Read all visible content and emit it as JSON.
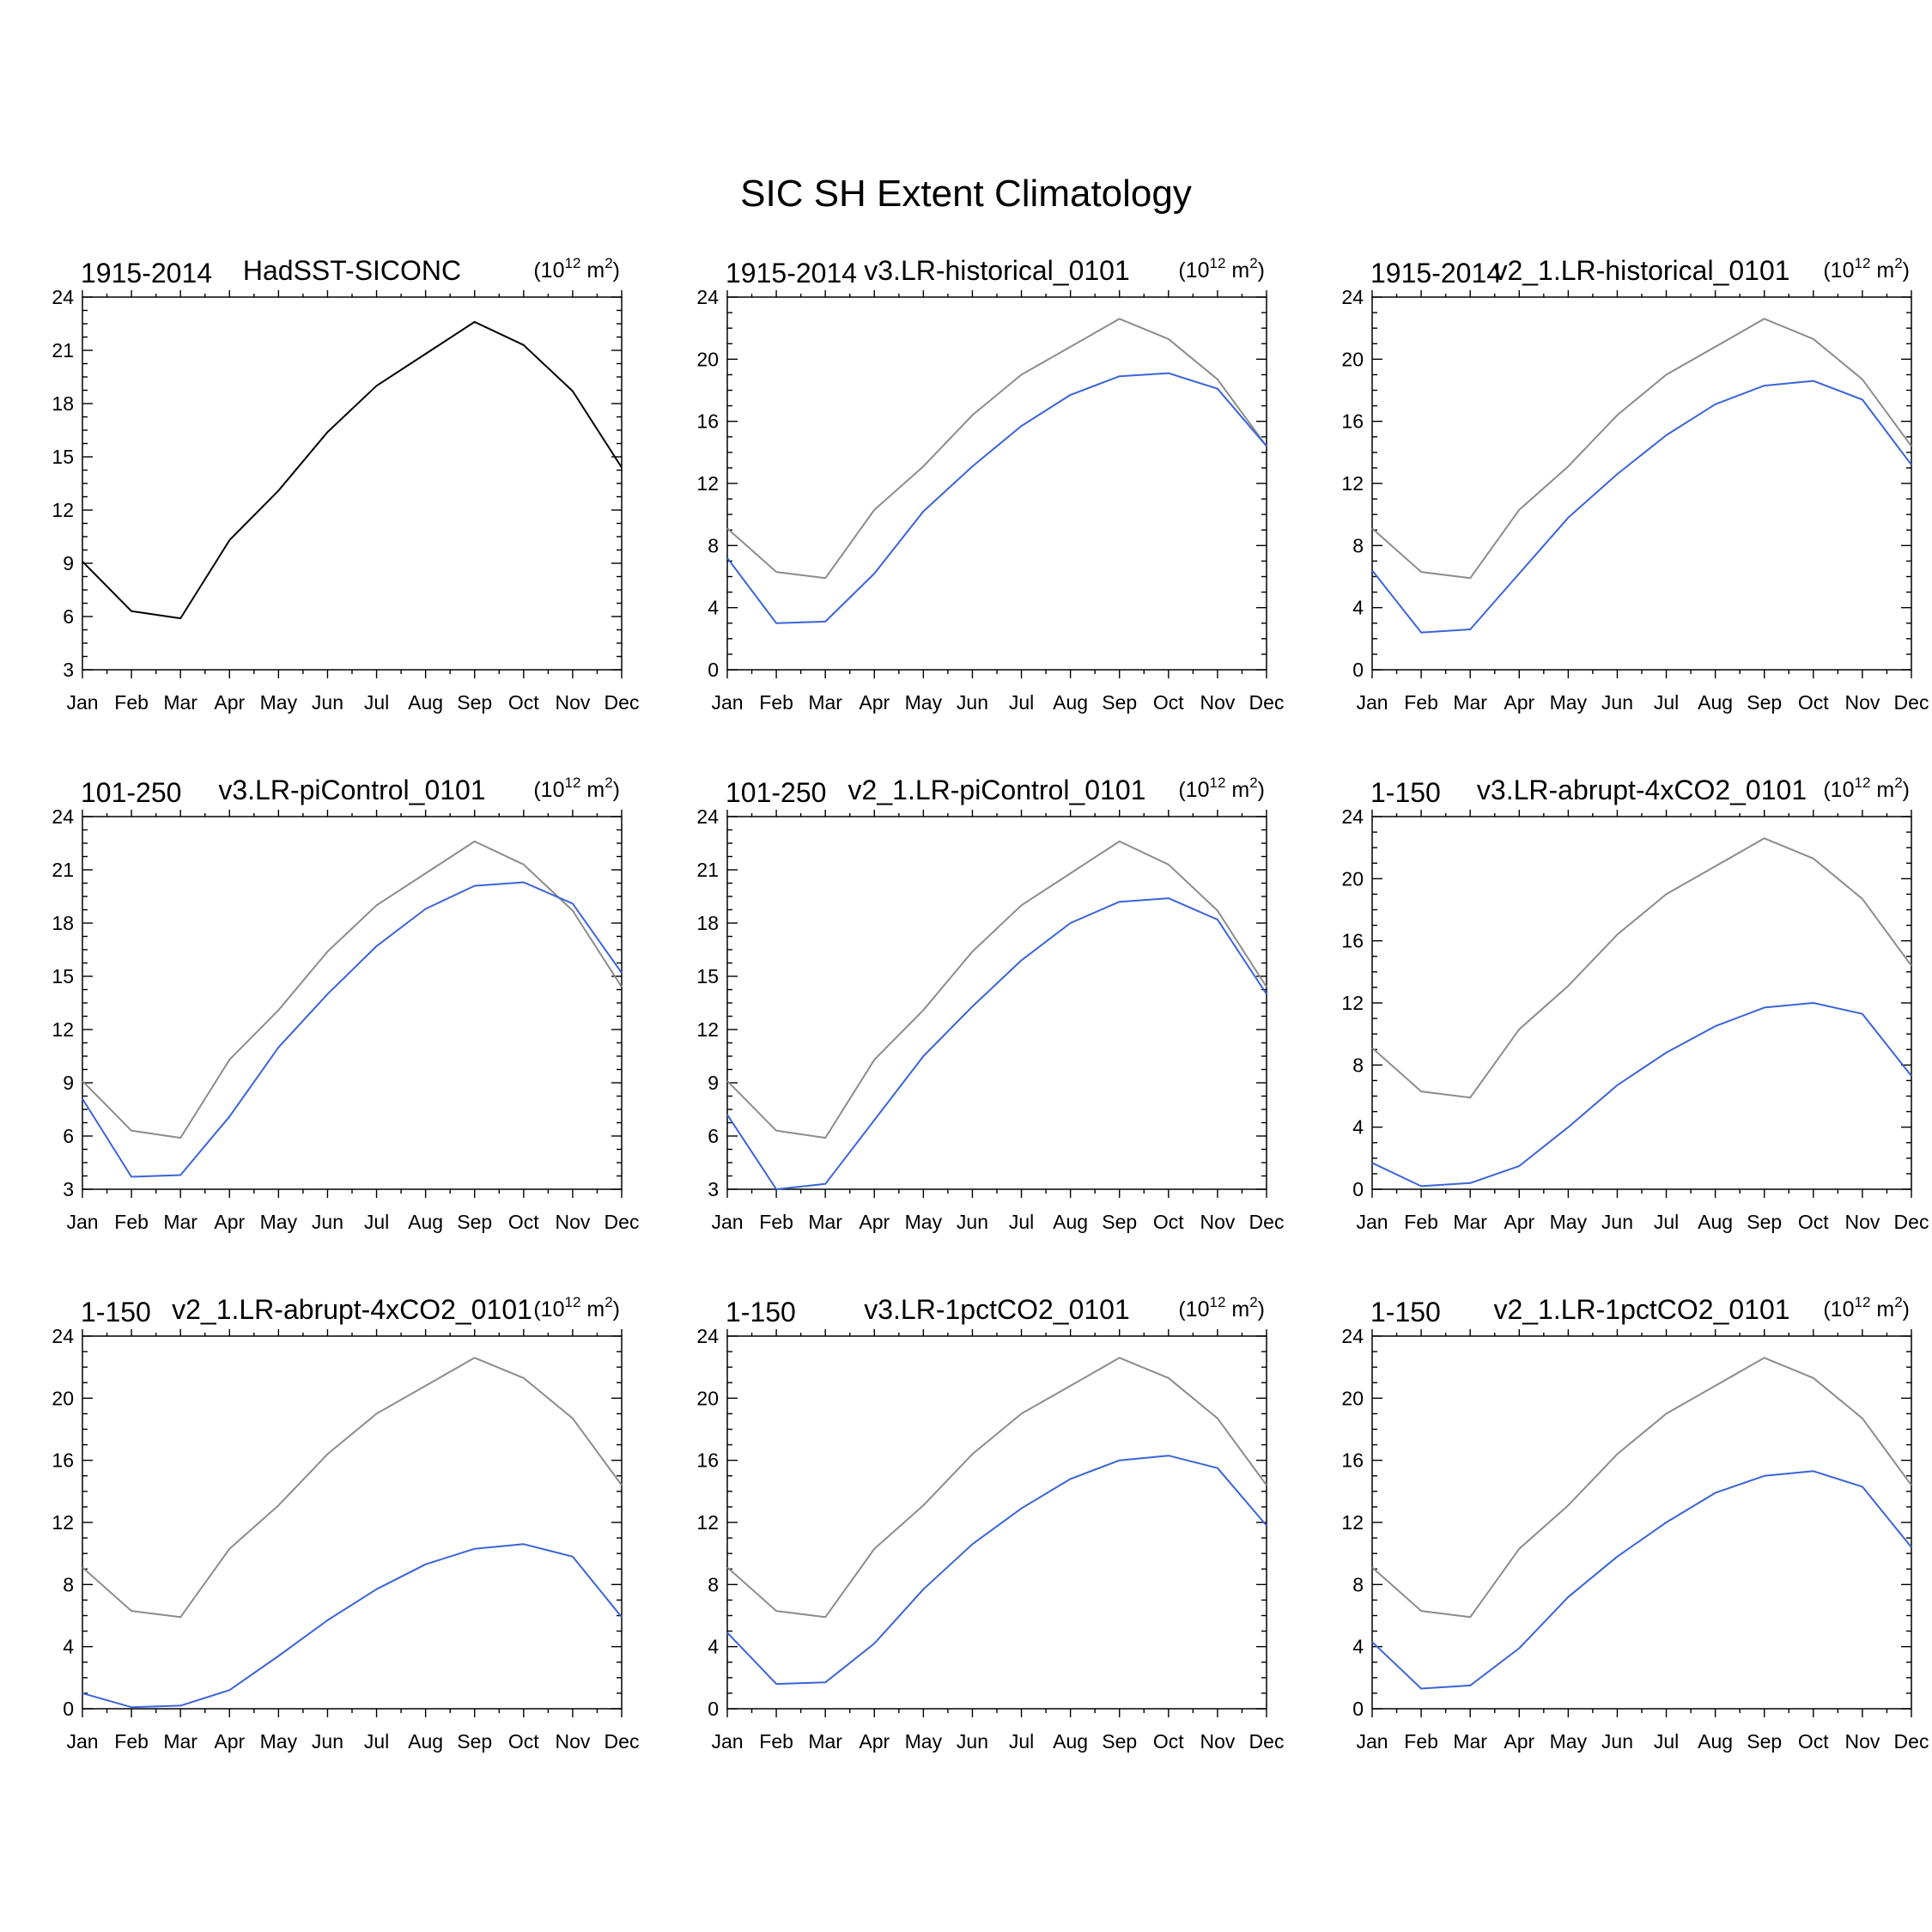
{
  "title": "SIC SH Extent Climatology",
  "chart_data": [
    {
      "type": "line",
      "left_label": "1915-2014",
      "center_label": "HadSST-SICONC",
      "units": "(10",
      "units_exp": "12",
      "units_tail": " m",
      "units_exp2": "2",
      "units_close": ")",
      "categories": [
        "Jan",
        "Feb",
        "Mar",
        "Apr",
        "May",
        "Jun",
        "Jul",
        "Aug",
        "Sep",
        "Oct",
        "Nov",
        "Dec"
      ],
      "ylim": [
        3,
        24
      ],
      "yticks": [
        3,
        6,
        9,
        12,
        15,
        18,
        21,
        24
      ],
      "series": [
        {
          "color": "#000000",
          "values": [
            9.1,
            6.3,
            5.9,
            10.3,
            13.1,
            16.4,
            19.0,
            20.8,
            22.6,
            21.3,
            18.7,
            14.4
          ]
        }
      ]
    },
    {
      "type": "line",
      "left_label": "1915-2014",
      "center_label": "v3.LR-historical_0101",
      "units": "(10",
      "units_exp": "12",
      "units_tail": " m",
      "units_exp2": "2",
      "units_close": ")",
      "categories": [
        "Jan",
        "Feb",
        "Mar",
        "Apr",
        "May",
        "Jun",
        "Jul",
        "Aug",
        "Sep",
        "Oct",
        "Nov",
        "Dec"
      ],
      "ylim": [
        0,
        24
      ],
      "yticks": [
        0,
        4,
        8,
        12,
        16,
        20,
        24
      ],
      "series": [
        {
          "color": "#8c8c8c",
          "values": [
            9.1,
            6.3,
            5.9,
            10.3,
            13.1,
            16.4,
            19.0,
            20.8,
            22.6,
            21.3,
            18.7,
            14.4
          ]
        },
        {
          "color": "#3b64d6",
          "values": [
            7.2,
            3.0,
            3.1,
            6.2,
            10.2,
            13.1,
            15.7,
            17.7,
            18.9,
            19.1,
            18.1,
            14.4
          ]
        }
      ]
    },
    {
      "type": "line",
      "left_label": "1915-2014",
      "center_label": "v2_1.LR-historical_0101",
      "units": "(10",
      "units_exp": "12",
      "units_tail": " m",
      "units_exp2": "2",
      "units_close": ")",
      "categories": [
        "Jan",
        "Feb",
        "Mar",
        "Apr",
        "May",
        "Jun",
        "Jul",
        "Aug",
        "Sep",
        "Oct",
        "Nov",
        "Dec"
      ],
      "ylim": [
        0,
        24
      ],
      "yticks": [
        0,
        4,
        8,
        12,
        16,
        20,
        24
      ],
      "series": [
        {
          "color": "#8c8c8c",
          "values": [
            9.1,
            6.3,
            5.9,
            10.3,
            13.1,
            16.4,
            19.0,
            20.8,
            22.6,
            21.3,
            18.7,
            14.4
          ]
        },
        {
          "color": "#3b64d6",
          "values": [
            6.4,
            2.4,
            2.6,
            6.2,
            9.8,
            12.6,
            15.1,
            17.1,
            18.3,
            18.6,
            17.4,
            13.2
          ]
        }
      ]
    },
    {
      "type": "line",
      "left_label": "101-250",
      "center_label": "v3.LR-piControl_0101",
      "units": "(10",
      "units_exp": "12",
      "units_tail": " m",
      "units_exp2": "2",
      "units_close": ")",
      "categories": [
        "Jan",
        "Feb",
        "Mar",
        "Apr",
        "May",
        "Jun",
        "Jul",
        "Aug",
        "Sep",
        "Oct",
        "Nov",
        "Dec"
      ],
      "ylim": [
        3,
        24
      ],
      "yticks": [
        3,
        6,
        9,
        12,
        15,
        18,
        21,
        24
      ],
      "series": [
        {
          "color": "#8c8c8c",
          "values": [
            9.1,
            6.3,
            5.9,
            10.3,
            13.1,
            16.4,
            19.0,
            20.8,
            22.6,
            21.3,
            18.7,
            14.4
          ]
        },
        {
          "color": "#3b64d6",
          "values": [
            8.1,
            3.7,
            3.8,
            7.1,
            11.0,
            14.0,
            16.7,
            18.8,
            20.1,
            20.3,
            19.1,
            15.2
          ]
        }
      ]
    },
    {
      "type": "line",
      "left_label": "101-250",
      "center_label": "v2_1.LR-piControl_0101",
      "units": "(10",
      "units_exp": "12",
      "units_tail": " m",
      "units_exp2": "2",
      "units_close": ")",
      "categories": [
        "Jan",
        "Feb",
        "Mar",
        "Apr",
        "May",
        "Jun",
        "Jul",
        "Aug",
        "Sep",
        "Oct",
        "Nov",
        "Dec"
      ],
      "ylim": [
        3,
        24
      ],
      "yticks": [
        3,
        6,
        9,
        12,
        15,
        18,
        21,
        24
      ],
      "series": [
        {
          "color": "#8c8c8c",
          "values": [
            9.1,
            6.3,
            5.9,
            10.3,
            13.1,
            16.4,
            19.0,
            20.8,
            22.6,
            21.3,
            18.7,
            14.4
          ]
        },
        {
          "color": "#3b64d6",
          "values": [
            7.2,
            3.0,
            3.3,
            6.9,
            10.5,
            13.3,
            15.9,
            18.0,
            19.2,
            19.4,
            18.2,
            14.0
          ]
        }
      ]
    },
    {
      "type": "line",
      "left_label": "1-150",
      "center_label": "v3.LR-abrupt-4xCO2_0101",
      "units": "(10",
      "units_exp": "12",
      "units_tail": " m",
      "units_exp2": "2",
      "units_close": ")",
      "categories": [
        "Jan",
        "Feb",
        "Mar",
        "Apr",
        "May",
        "Jun",
        "Jul",
        "Aug",
        "Sep",
        "Oct",
        "Nov",
        "Dec"
      ],
      "ylim": [
        0,
        24
      ],
      "yticks": [
        0,
        4,
        8,
        12,
        16,
        20,
        24
      ],
      "series": [
        {
          "color": "#8c8c8c",
          "values": [
            9.1,
            6.3,
            5.9,
            10.3,
            13.1,
            16.4,
            19.0,
            20.8,
            22.6,
            21.3,
            18.7,
            14.4
          ]
        },
        {
          "color": "#3b64d6",
          "values": [
            1.7,
            0.2,
            0.4,
            1.5,
            4.0,
            6.7,
            8.8,
            10.5,
            11.7,
            12.0,
            11.3,
            7.3
          ]
        }
      ]
    },
    {
      "type": "line",
      "left_label": "1-150",
      "center_label": "v2_1.LR-abrupt-4xCO2_0101",
      "units": "(10",
      "units_exp": "12",
      "units_tail": " m",
      "units_exp2": "2",
      "units_close": ")",
      "categories": [
        "Jan",
        "Feb",
        "Mar",
        "Apr",
        "May",
        "Jun",
        "Jul",
        "Aug",
        "Sep",
        "Oct",
        "Nov",
        "Dec"
      ],
      "ylim": [
        0,
        24
      ],
      "yticks": [
        0,
        4,
        8,
        12,
        16,
        20,
        24
      ],
      "series": [
        {
          "color": "#8c8c8c",
          "values": [
            9.1,
            6.3,
            5.9,
            10.3,
            13.1,
            16.4,
            19.0,
            20.8,
            22.6,
            21.3,
            18.7,
            14.4
          ]
        },
        {
          "color": "#3b64d6",
          "values": [
            1.0,
            0.1,
            0.2,
            1.2,
            3.4,
            5.7,
            7.7,
            9.3,
            10.3,
            10.6,
            9.8,
            5.9
          ]
        }
      ]
    },
    {
      "type": "line",
      "left_label": "1-150",
      "center_label": "v3.LR-1pctCO2_0101",
      "units": "(10",
      "units_exp": "12",
      "units_tail": " m",
      "units_exp2": "2",
      "units_close": ")",
      "categories": [
        "Jan",
        "Feb",
        "Mar",
        "Apr",
        "May",
        "Jun",
        "Jul",
        "Aug",
        "Sep",
        "Oct",
        "Nov",
        "Dec"
      ],
      "ylim": [
        0,
        24
      ],
      "yticks": [
        0,
        4,
        8,
        12,
        16,
        20,
        24
      ],
      "series": [
        {
          "color": "#8c8c8c",
          "values": [
            9.1,
            6.3,
            5.9,
            10.3,
            13.1,
            16.4,
            19.0,
            20.8,
            22.6,
            21.3,
            18.7,
            14.4
          ]
        },
        {
          "color": "#3b64d6",
          "values": [
            4.9,
            1.6,
            1.7,
            4.2,
            7.7,
            10.6,
            12.9,
            14.8,
            16.0,
            16.3,
            15.5,
            11.8
          ]
        }
      ]
    },
    {
      "type": "line",
      "left_label": "1-150",
      "center_label": "v2_1.LR-1pctCO2_0101",
      "units": "(10",
      "units_exp": "12",
      "units_tail": " m",
      "units_exp2": "2",
      "units_close": ")",
      "categories": [
        "Jan",
        "Feb",
        "Mar",
        "Apr",
        "May",
        "Jun",
        "Jul",
        "Aug",
        "Sep",
        "Oct",
        "Nov",
        "Dec"
      ],
      "ylim": [
        0,
        24
      ],
      "yticks": [
        0,
        4,
        8,
        12,
        16,
        20,
        24
      ],
      "series": [
        {
          "color": "#8c8c8c",
          "values": [
            9.1,
            6.3,
            5.9,
            10.3,
            13.1,
            16.4,
            19.0,
            20.8,
            22.6,
            21.3,
            18.7,
            14.4
          ]
        },
        {
          "color": "#3b64d6",
          "values": [
            4.3,
            1.3,
            1.5,
            3.9,
            7.2,
            9.8,
            12.0,
            13.9,
            15.0,
            15.3,
            14.3,
            10.4
          ]
        }
      ]
    }
  ]
}
